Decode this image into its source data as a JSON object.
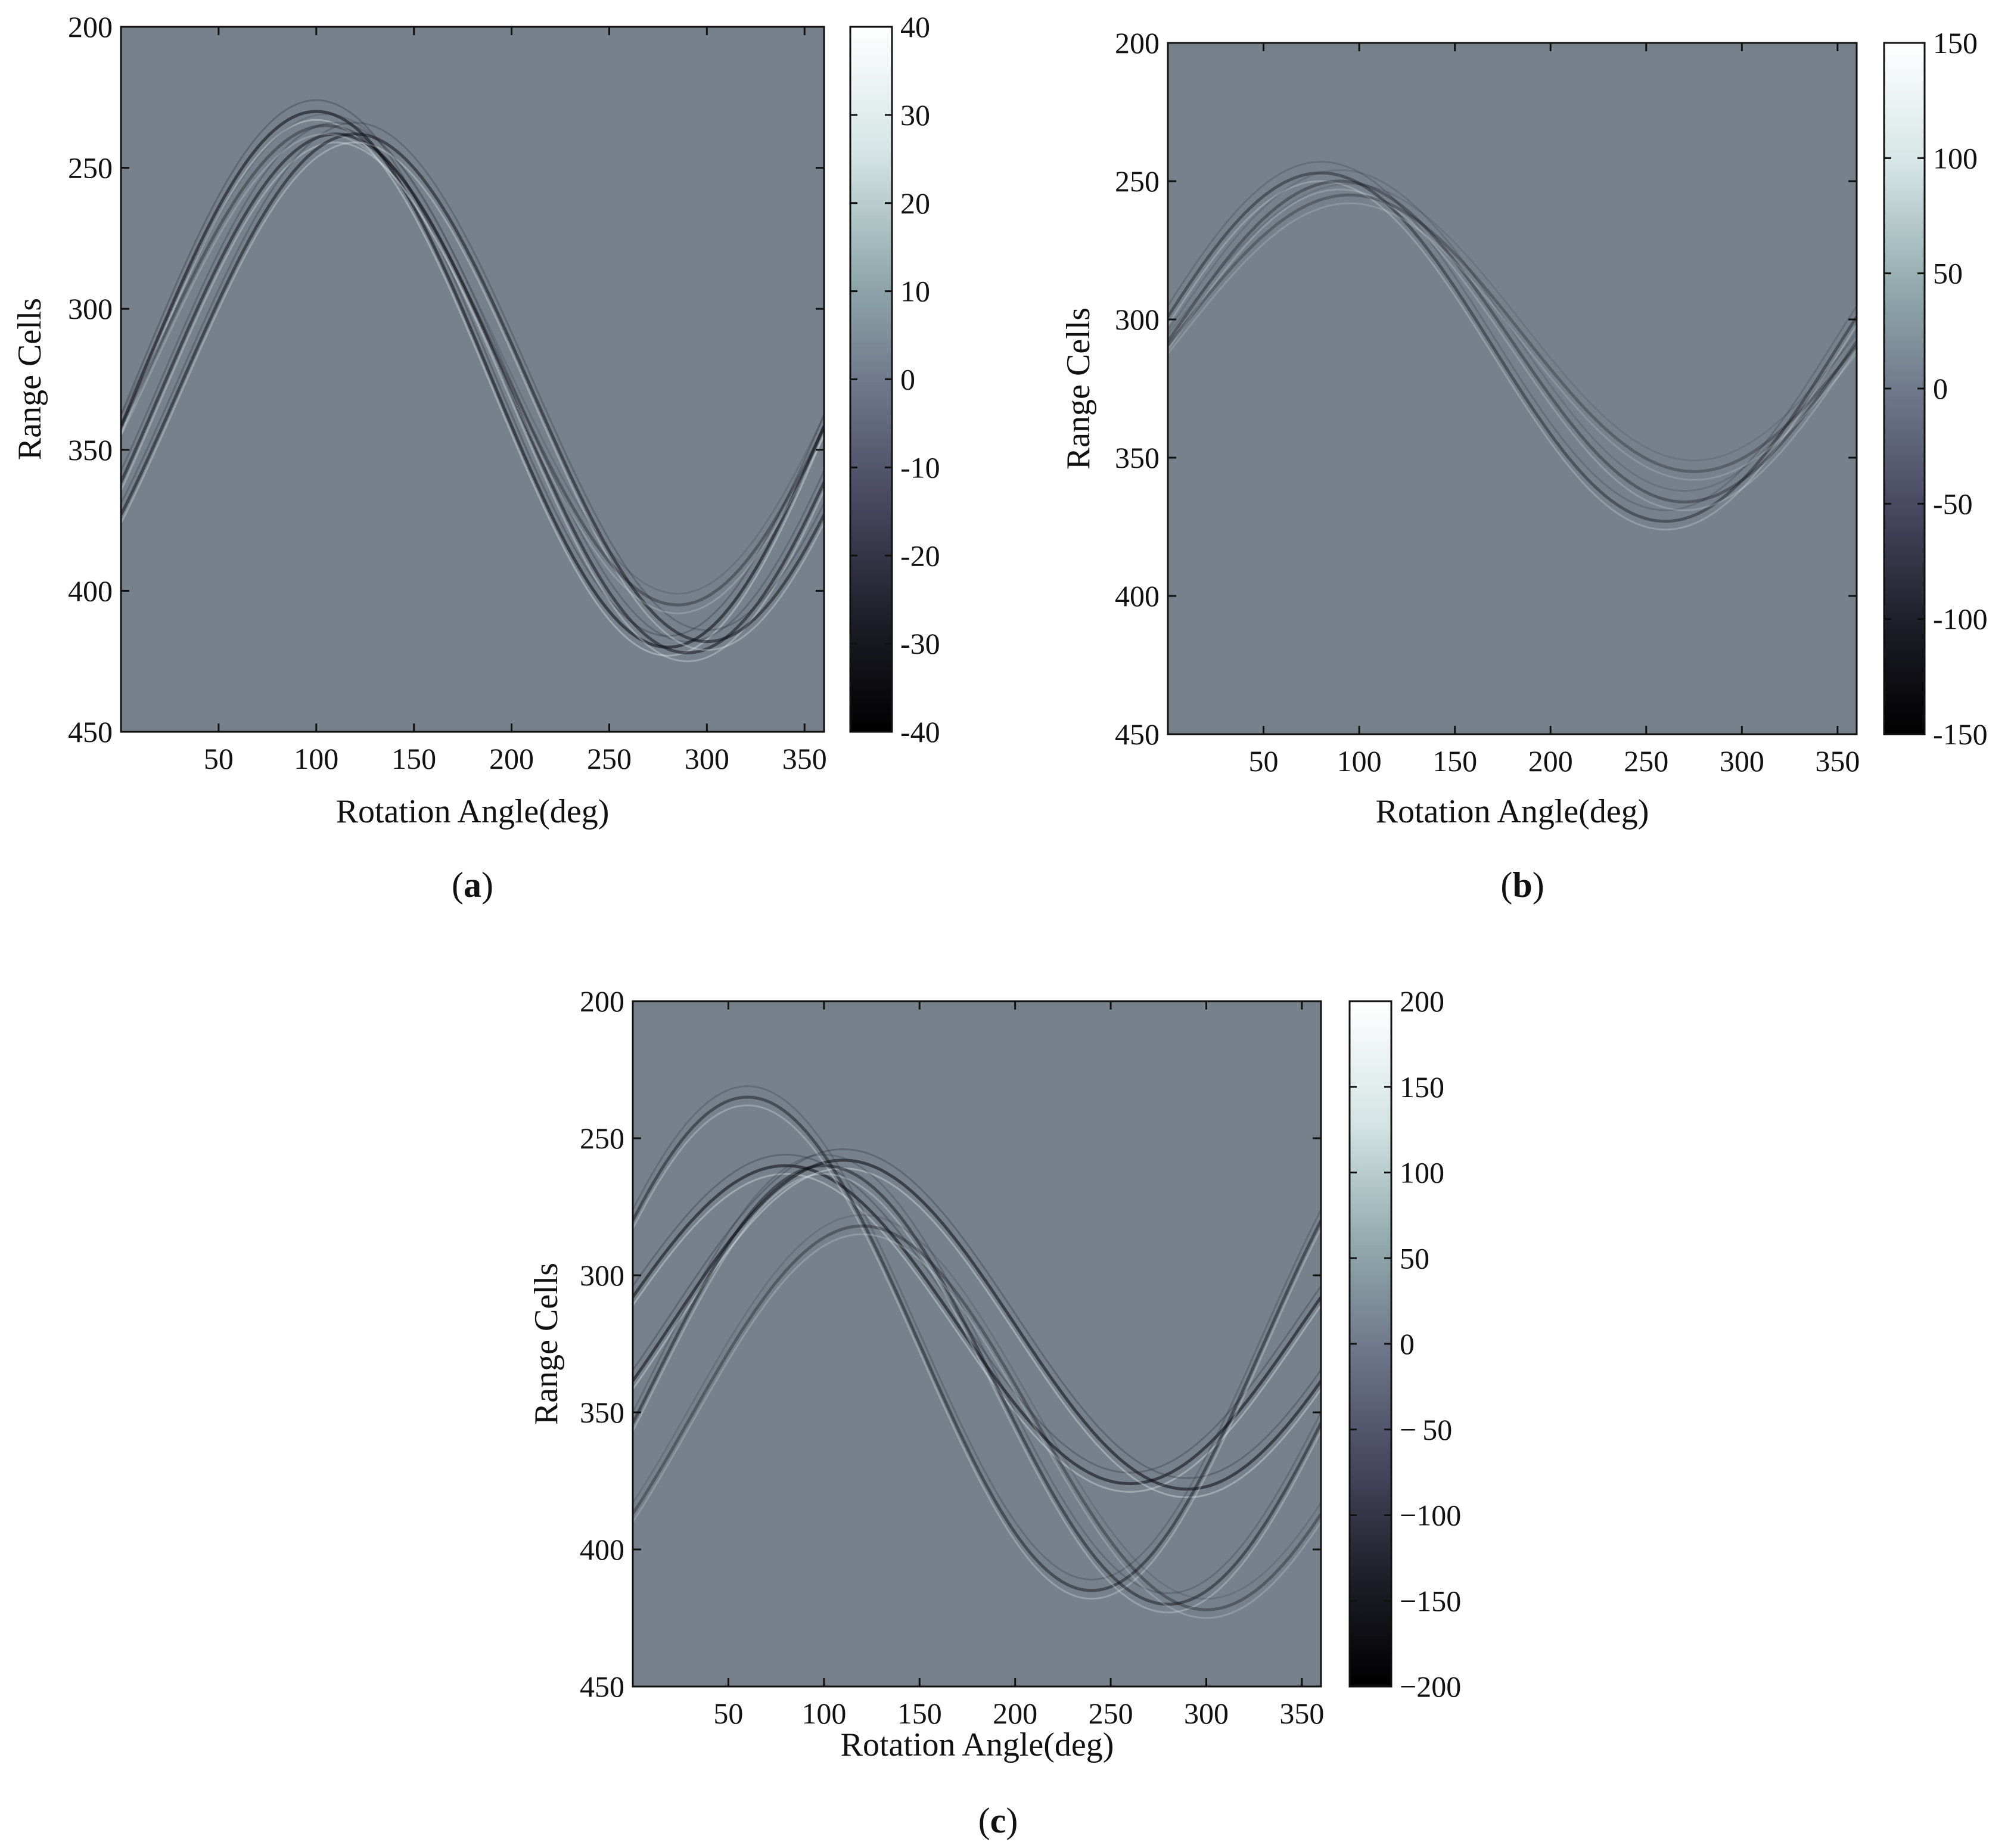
{
  "colors": {
    "background": "#77818c",
    "axis": "#111111"
  },
  "chart_data": [
    {
      "type": "heatmap",
      "caption_letter": "a",
      "xlabel": "Rotation Angle(deg)",
      "ylabel": "Range Cells",
      "xlim": [
        0,
        360
      ],
      "ylim": [
        450,
        200
      ],
      "xticks": [
        50,
        100,
        150,
        200,
        250,
        300,
        350
      ],
      "yticks": [
        200,
        250,
        300,
        350,
        400,
        450
      ],
      "colorbar": {
        "min": -40,
        "max": 40,
        "ticks": [
          "40",
          "30",
          "20",
          "10",
          "0",
          "-10",
          "-20",
          "-30",
          "-40"
        ]
      },
      "curves": [
        {
          "center": 325,
          "amplitude": 95,
          "phase": 100,
          "strength": 1.0
        },
        {
          "center": 330,
          "amplitude": 92,
          "phase": 110,
          "strength": 0.9
        },
        {
          "center": 328,
          "amplitude": 90,
          "phase": 120,
          "strength": 0.9
        },
        {
          "center": 320,
          "amplitude": 85,
          "phase": 105,
          "strength": 0.6
        }
      ]
    },
    {
      "type": "heatmap",
      "caption_letter": "b",
      "xlabel": "Rotation Angle(deg)",
      "ylabel": "Range Cells",
      "xlim": [
        0,
        360
      ],
      "ylim": [
        450,
        200
      ],
      "xticks": [
        50,
        100,
        150,
        200,
        250,
        300,
        350
      ],
      "yticks": [
        200,
        250,
        300,
        350,
        400,
        450
      ],
      "colorbar": {
        "min": -150,
        "max": 150,
        "ticks": [
          "150",
          "100",
          "50",
          "0",
          "-50",
          "-100",
          "-150"
        ]
      },
      "curves": [
        {
          "center": 310,
          "amplitude": 63,
          "phase": 80,
          "strength": 0.7
        },
        {
          "center": 308,
          "amplitude": 58,
          "phase": 90,
          "strength": 0.6
        },
        {
          "center": 305,
          "amplitude": 50,
          "phase": 95,
          "strength": 0.5
        }
      ]
    },
    {
      "type": "heatmap",
      "caption_letter": "c",
      "xlabel": "Rotation Angle(deg)",
      "ylabel": "Range Cells",
      "xlim": [
        0,
        360
      ],
      "ylim": [
        450,
        200
      ],
      "xticks": [
        50,
        100,
        150,
        200,
        250,
        300,
        350
      ],
      "yticks": [
        200,
        250,
        300,
        350,
        400,
        450
      ],
      "colorbar": {
        "min": -200,
        "max": 200,
        "ticks": [
          "200",
          "150",
          "100",
          "50",
          "0",
          "− 50",
          "−100",
          "−150",
          "−200"
        ]
      },
      "curves": [
        {
          "center": 318,
          "amplitude": 58,
          "phase": 80,
          "strength": 1.0
        },
        {
          "center": 318,
          "amplitude": 60,
          "phase": 110,
          "strength": 1.0
        },
        {
          "center": 325,
          "amplitude": 90,
          "phase": 60,
          "strength": 0.8
        },
        {
          "center": 340,
          "amplitude": 80,
          "phase": 100,
          "strength": 0.8
        },
        {
          "center": 352,
          "amplitude": 70,
          "phase": 120,
          "strength": 0.6
        }
      ]
    }
  ]
}
